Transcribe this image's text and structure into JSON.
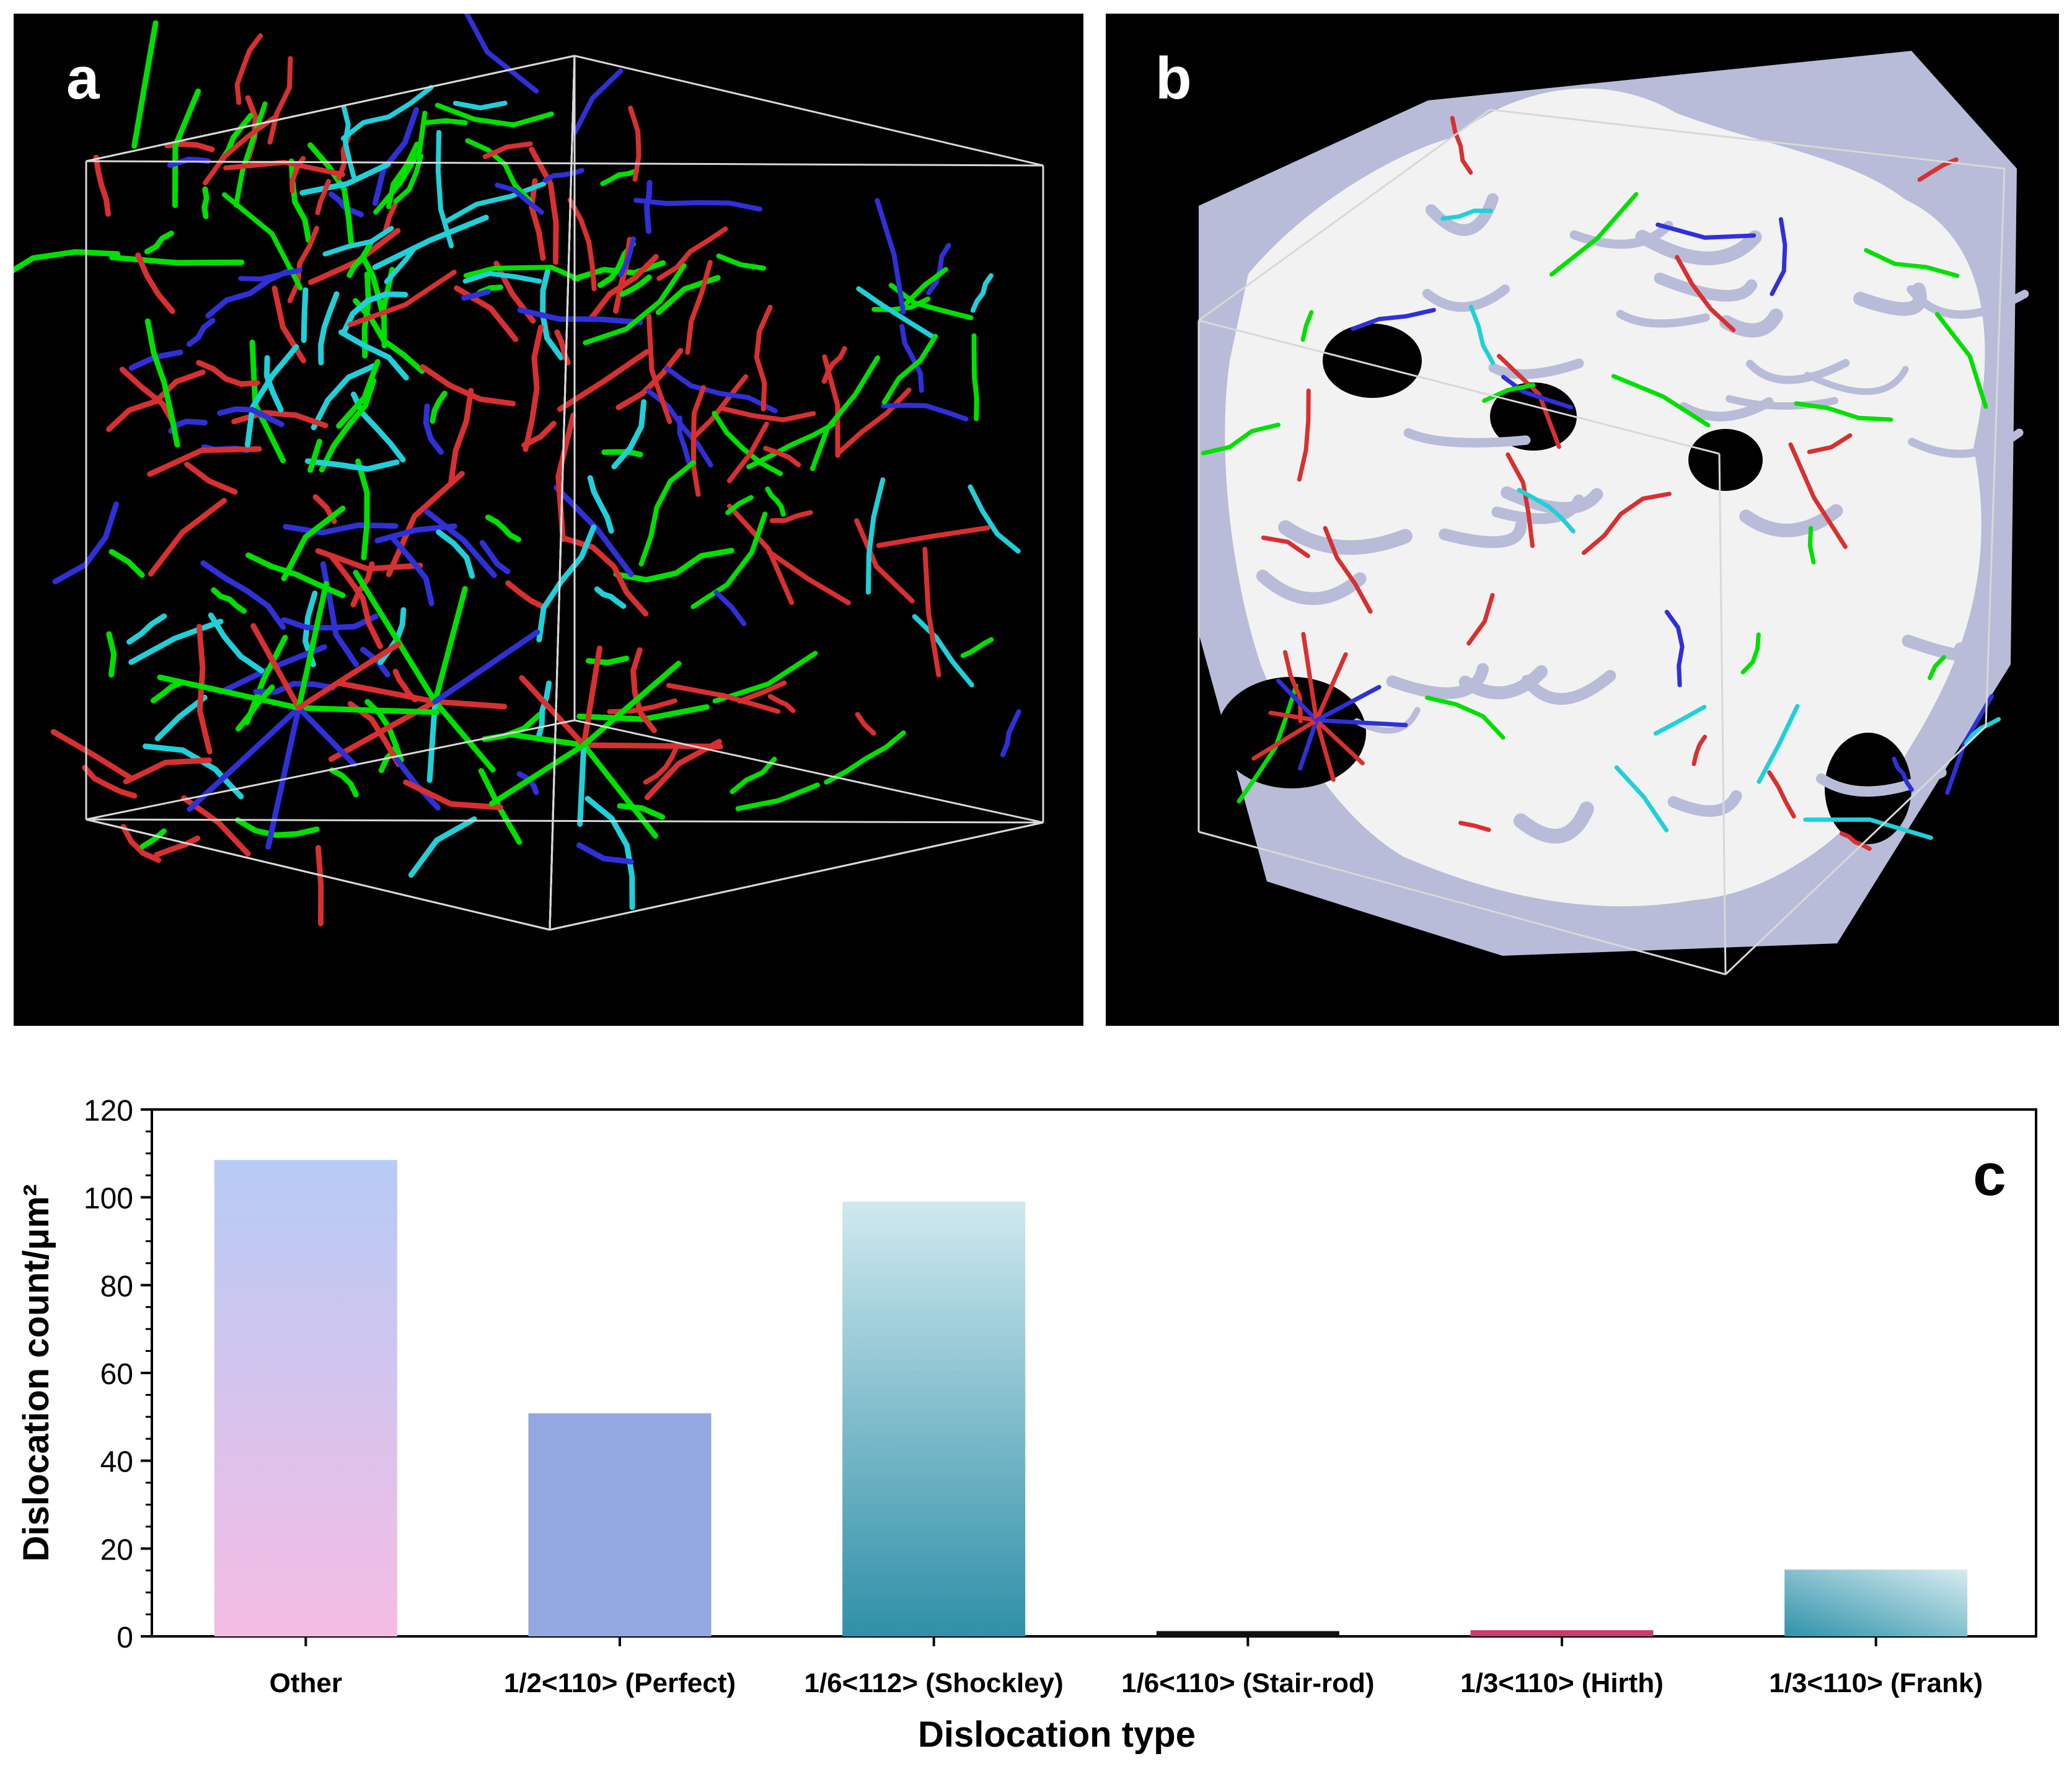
{
  "panels": {
    "a": {
      "label": "a"
    },
    "b": {
      "label": "b"
    },
    "c": {
      "label": "c"
    }
  },
  "legend_colors": {
    "other": "#00e000",
    "perfect": "#3030d8",
    "shockley": "#d83030",
    "frank": "#20d0d8",
    "box": "#d8d8d8",
    "surface": "#f2f2f2",
    "surface_shade": "#b8bcd8"
  },
  "chart_data": {
    "type": "bar",
    "title": "",
    "xlabel": "Dislocation type",
    "ylabel": "Dislocation count/μm²",
    "ylim": [
      0,
      120
    ],
    "yticks": [
      0,
      20,
      40,
      60,
      80,
      100,
      120
    ],
    "grid": false,
    "categories": [
      "Other",
      "1/2<110> (Perfect)",
      "1/6<112> (Shockley)",
      "1/6<110> (Stair-rod)",
      "1/3<110> (Hirth)",
      "1/3<110> (Frank)"
    ],
    "values": [
      108.5,
      50.8,
      99.0,
      1.2,
      1.4,
      15.2
    ],
    "bar_colors": [
      [
        "#b6cbf5",
        "#f5bce4"
      ],
      [
        "#93a8e0",
        "#93a8e0"
      ],
      [
        "#cfe9ef",
        "#2f90a8"
      ],
      [
        "#111111",
        "#111111"
      ],
      [
        "#cc3a6a",
        "#cc3a6a"
      ],
      [
        "#d6ecf1",
        "#2f92aa"
      ]
    ]
  }
}
